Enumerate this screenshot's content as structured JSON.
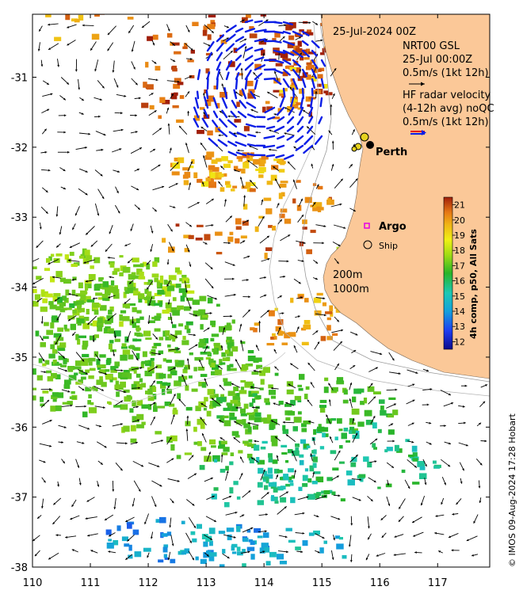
{
  "title": "25-Jul-2024 00Z",
  "legend": {
    "model_name": "NRT00 GSL",
    "model_time": "25-Jul 00:00Z",
    "model_scale": "0.5m/s (1kt 12h)",
    "hf_title_1": "HF radar velocity",
    "hf_title_2": "(4-12h avg) noQC",
    "hf_scale": "0.5m/s (1kt 12h)",
    "isobath_1": "200m",
    "isobath_2": "1000m"
  },
  "places": {
    "city": "Perth",
    "argo": "Argo",
    "ship": "Ship"
  },
  "axes": {
    "x_ticks": [
      "110",
      "111",
      "112",
      "113",
      "114",
      "115",
      "116",
      "117"
    ],
    "y_ticks": [
      "-31",
      "-32",
      "-33",
      "-34",
      "-35",
      "-36",
      "-37",
      "-38"
    ],
    "xlim": [
      110,
      117.9
    ],
    "ylim": [
      -38,
      -30.1
    ]
  },
  "colorbar": {
    "label": "4h comp, p50, All Sats",
    "ticks": [
      "21",
      "20",
      "19",
      "18",
      "17",
      "16",
      "15",
      "14",
      "13",
      "12"
    ],
    "range": [
      11.5,
      21.5
    ]
  },
  "credit": "© IMOS 09-Aug-2024 17:28 Hobart",
  "colors": {
    "land": "#fbc898",
    "hf_vectors": "#0a1ee6",
    "argo_marker": "#e600e6",
    "ship_marker": "#000000"
  }
}
